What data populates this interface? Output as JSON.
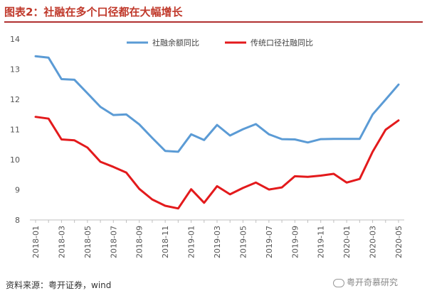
{
  "header": {
    "title": "图表2：社融在多个口径都在大幅增长"
  },
  "footer": {
    "source": "资料来源：粤开证券，wind",
    "watermark": "粤开奇慕研究"
  },
  "colors": {
    "series1": "#5b9bd5",
    "series2": "#e31a1c",
    "title": "#c0392b"
  },
  "chart_data": {
    "type": "line",
    "title": "图表2：社融在多个口径都在大幅增长",
    "xlabel": "",
    "ylabel": "",
    "ylim": [
      8,
      14
    ],
    "yticks": [
      8,
      9,
      10,
      11,
      12,
      13,
      14
    ],
    "grid": false,
    "legend": "top-center",
    "x": [
      "2018-01",
      "2018-02",
      "2018-03",
      "2018-04",
      "2018-05",
      "2018-06",
      "2018-07",
      "2018-08",
      "2018-09",
      "2018-10",
      "2018-11",
      "2018-12",
      "2019-01",
      "2019-02",
      "2019-03",
      "2019-04",
      "2019-05",
      "2019-06",
      "2019-07",
      "2019-08",
      "2019-09",
      "2019-10",
      "2019-11",
      "2019-12",
      "2020-01",
      "2020-02",
      "2020-03",
      "2020-04",
      "2020-05"
    ],
    "xtick_labels": [
      "2018-01",
      "2018-03",
      "2018-05",
      "2018-07",
      "2018-09",
      "2018-11",
      "2019-01",
      "2019-03",
      "2019-05",
      "2019-07",
      "2019-09",
      "2019-11",
      "2020-01",
      "2020-03",
      "2020-05"
    ],
    "series": [
      {
        "name": "社融余额同比",
        "color": "#5b9bd5",
        "values": [
          13.43,
          13.38,
          12.67,
          12.65,
          12.2,
          11.75,
          11.48,
          11.5,
          11.17,
          10.72,
          10.29,
          10.26,
          10.84,
          10.65,
          11.15,
          10.8,
          11.01,
          11.18,
          10.84,
          10.68,
          10.67,
          10.57,
          10.68,
          10.69,
          10.69,
          10.69,
          11.5,
          11.99,
          12.49
        ]
      },
      {
        "name": "传统口径社融同比",
        "color": "#e31a1c",
        "values": [
          11.42,
          11.36,
          10.67,
          10.64,
          10.4,
          9.93,
          9.76,
          9.57,
          9.03,
          8.68,
          8.47,
          8.38,
          9.02,
          8.57,
          9.12,
          8.85,
          9.06,
          9.24,
          9.01,
          9.08,
          9.45,
          9.43,
          9.47,
          9.53,
          9.24,
          9.36,
          10.26,
          10.99,
          11.3
        ]
      }
    ]
  }
}
